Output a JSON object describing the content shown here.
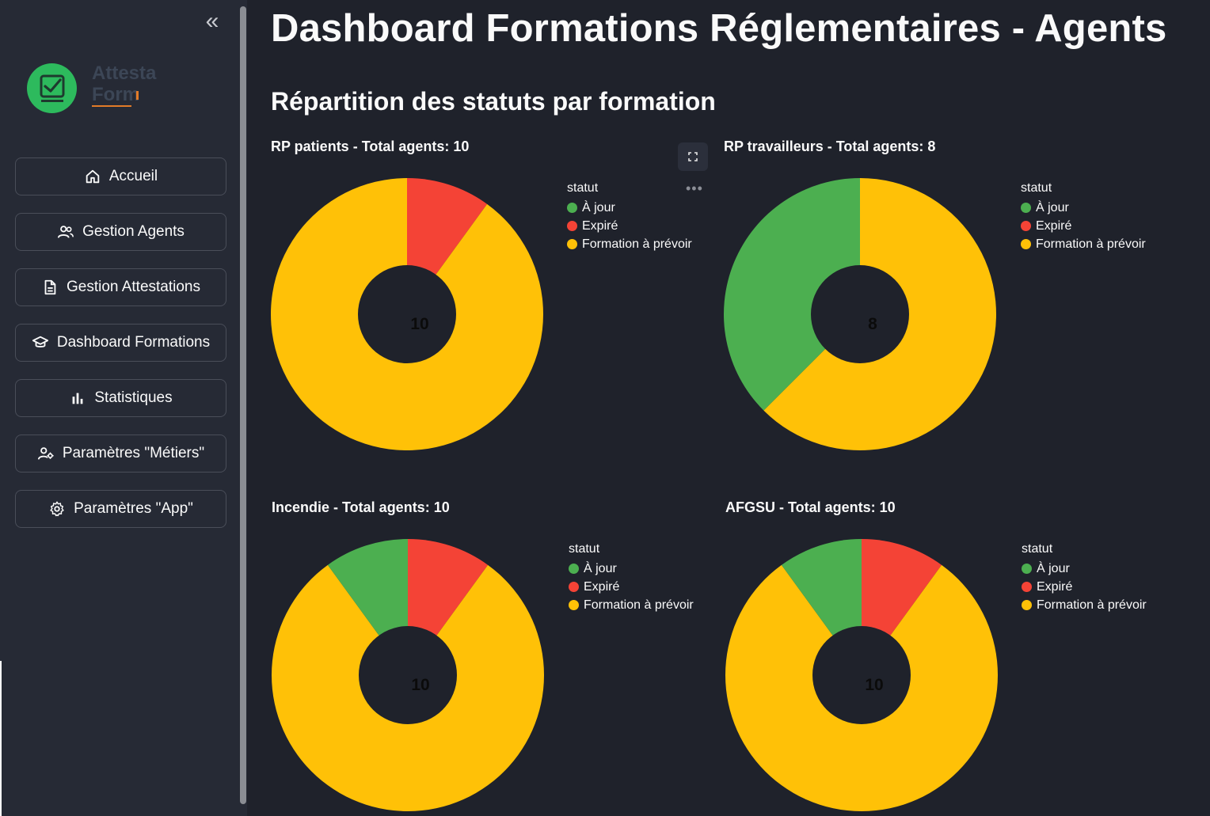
{
  "sidebar": {
    "logo": {
      "line1": "Attesta",
      "line2": "Form"
    },
    "collapse_label": "«",
    "items": [
      {
        "label": "Accueil",
        "icon": "home-icon"
      },
      {
        "label": "Gestion Agents",
        "icon": "users-icon"
      },
      {
        "label": "Gestion Attestations",
        "icon": "document-icon"
      },
      {
        "label": "Dashboard Formations",
        "icon": "graduation-cap-icon"
      },
      {
        "label": "Statistiques",
        "icon": "bar-chart-icon"
      },
      {
        "label": "Paramètres \"Métiers\"",
        "icon": "user-settings-icon"
      },
      {
        "label": "Paramètres \"App\"",
        "icon": "gear-icon"
      }
    ]
  },
  "main": {
    "title": "Dashboard Formations Réglementaires - Agents",
    "section_title": "Répartition des statuts par formation"
  },
  "colors": {
    "a_jour": "#4caf50",
    "expire": "#f44336",
    "a_prevoir": "#ffc107",
    "background": "#1f222b"
  },
  "chart_data": [
    {
      "type": "pie",
      "title": "RP patients - Total agents: 10",
      "center_label": "10",
      "legend_title": "statut",
      "labels": [
        "À jour",
        "Expiré",
        "Formation à prévoir"
      ],
      "values": [
        0,
        1,
        9
      ]
    },
    {
      "type": "pie",
      "title": "RP travailleurs - Total agents: 8",
      "center_label": "8",
      "legend_title": "statut",
      "labels": [
        "À jour",
        "Expiré",
        "Formation à prévoir"
      ],
      "values": [
        3,
        0,
        5
      ]
    },
    {
      "type": "pie",
      "title": "Incendie - Total agents: 10",
      "center_label": "10",
      "legend_title": "statut",
      "labels": [
        "À jour",
        "Expiré",
        "Formation à prévoir"
      ],
      "values": [
        1,
        1,
        8
      ]
    },
    {
      "type": "pie",
      "title": "AFGSU - Total agents: 10",
      "center_label": "10",
      "legend_title": "statut",
      "labels": [
        "À jour",
        "Expiré",
        "Formation à prévoir"
      ],
      "values": [
        1,
        1,
        8
      ]
    }
  ]
}
